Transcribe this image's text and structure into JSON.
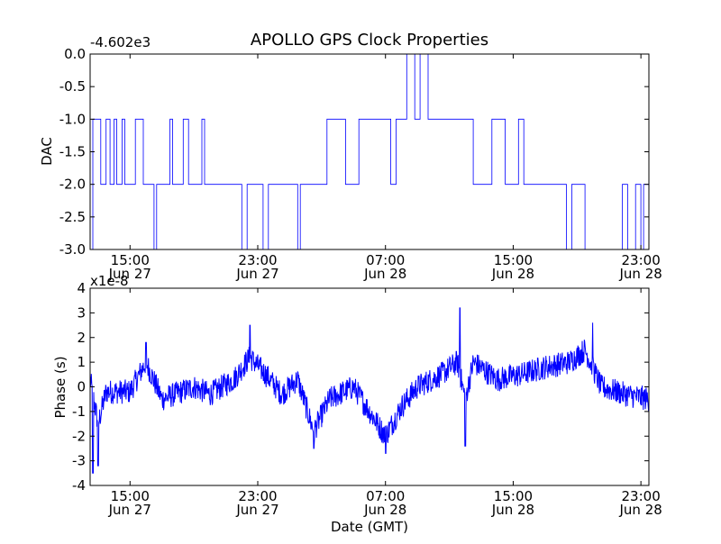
{
  "figure": {
    "title": "APOLLO GPS Clock Properties",
    "background": "#ffffff",
    "line_color": "#0000ff"
  },
  "chart_data": [
    {
      "type": "line",
      "title": "APOLLO GPS Clock Properties",
      "xlabel": "",
      "ylabel": "DAC",
      "offset_label": "-4.602e3",
      "ylim": [
        -3.0,
        0.0
      ],
      "yticks": [
        "0.0",
        "-0.5",
        "-1.0",
        "-1.5",
        "-2.0",
        "-2.5",
        "-3.0"
      ],
      "yticks_values": [
        0.0,
        -0.5,
        -1.0,
        -1.5,
        -2.0,
        -2.5,
        -3.0
      ],
      "xticks": [
        {
          "time": "15:00",
          "date": "Jun 27"
        },
        {
          "time": "23:00",
          "date": "Jun 27"
        },
        {
          "time": "07:00",
          "date": "Jun 28"
        },
        {
          "time": "15:00",
          "date": "Jun 28"
        },
        {
          "time": "23:00",
          "date": "Jun 28"
        }
      ],
      "xlim": [
        "Jun 27 12:30",
        "Jun 28 23:30"
      ],
      "color": "#0000ff",
      "series": [
        {
          "segments": [
            [
              "Jun 27 12:30",
              -3.0
            ],
            [
              "Jun 27 12:40",
              -1.0
            ],
            [
              "Jun 27 13:10",
              -2.0
            ],
            [
              "Jun 27 13:30",
              -1.0
            ],
            [
              "Jun 27 13:45",
              -2.0
            ],
            [
              "Jun 27 14:00",
              -1.0
            ],
            [
              "Jun 27 14:10",
              -2.0
            ],
            [
              "Jun 27 14:30",
              -1.0
            ],
            [
              "Jun 27 14:40",
              -2.0
            ],
            [
              "Jun 27 15:20",
              -1.0
            ],
            [
              "Jun 27 15:50",
              -2.0
            ],
            [
              "Jun 27 16:30",
              -3.0
            ],
            [
              "Jun 27 16:40",
              -2.0
            ],
            [
              "Jun 27 17:30",
              -1.0
            ],
            [
              "Jun 27 17:40",
              -2.0
            ],
            [
              "Jun 27 18:20",
              -1.0
            ],
            [
              "Jun 27 18:40",
              -2.0
            ],
            [
              "Jun 27 19:30",
              -1.0
            ],
            [
              "Jun 27 19:40",
              -2.0
            ],
            [
              "Jun 27 22:00",
              -3.0
            ],
            [
              "Jun 27 22:20",
              -2.0
            ],
            [
              "Jun 27 23:20",
              -3.0
            ],
            [
              "Jun 27 23:40",
              -2.0
            ],
            [
              "Jun 28 01:30",
              -3.0
            ],
            [
              "Jun 28 01:40",
              -2.0
            ],
            [
              "Jun 28 03:20",
              -1.0
            ],
            [
              "Jun 28 04:30",
              -2.0
            ],
            [
              "Jun 28 05:20",
              -1.0
            ],
            [
              "Jun 28 07:20",
              -2.0
            ],
            [
              "Jun 28 07:40",
              -1.0
            ],
            [
              "Jun 28 08:20",
              0.0
            ],
            [
              "Jun 28 08:50",
              -1.0
            ],
            [
              "Jun 28 09:10",
              0.0
            ],
            [
              "Jun 28 09:40",
              -1.0
            ],
            [
              "Jun 28 12:30",
              -2.0
            ],
            [
              "Jun 28 13:40",
              -1.0
            ],
            [
              "Jun 28 14:30",
              -2.0
            ],
            [
              "Jun 28 15:20",
              -1.0
            ],
            [
              "Jun 28 15:40",
              -2.0
            ],
            [
              "Jun 28 18:20",
              -3.0
            ],
            [
              "Jun 28 18:40",
              -2.0
            ],
            [
              "Jun 28 19:30",
              -3.0
            ],
            [
              "Jun 28 21:50",
              -2.0
            ],
            [
              "Jun 28 22:10",
              -3.0
            ],
            [
              "Jun 28 22:40",
              -2.0
            ],
            [
              "Jun 28 23:00",
              -3.0
            ],
            [
              "Jun 28 23:10",
              -2.0
            ],
            [
              "Jun 28 23:30",
              -2.0
            ]
          ]
        }
      ]
    },
    {
      "type": "line",
      "title": "",
      "xlabel": "Date (GMT)",
      "ylabel": "Phase (s)",
      "offset_label": "x1e-8",
      "ylim": [
        -4,
        4
      ],
      "yticks": [
        "4",
        "3",
        "2",
        "1",
        "0",
        "-1",
        "-2",
        "-3",
        "-4"
      ],
      "yticks_values": [
        4,
        3,
        2,
        1,
        0,
        -1,
        -2,
        -3,
        -4
      ],
      "xticks": [
        {
          "time": "15:00",
          "date": "Jun 27"
        },
        {
          "time": "23:00",
          "date": "Jun 27"
        },
        {
          "time": "07:00",
          "date": "Jun 28"
        },
        {
          "time": "15:00",
          "date": "Jun 28"
        },
        {
          "time": "23:00",
          "date": "Jun 28"
        }
      ],
      "xlim": [
        "Jun 27 12:30",
        "Jun 28 23:30"
      ],
      "color": "#0000ff",
      "series": [
        {
          "trend": [
            [
              "Jun 27 12:30",
              0.3
            ],
            [
              "Jun 27 13:00",
              -1.5
            ],
            [
              "Jun 27 13:30",
              -0.2
            ],
            [
              "Jun 27 15:00",
              -0.2
            ],
            [
              "Jun 27 16:00",
              1.0
            ],
            [
              "Jun 27 17:00",
              -0.5
            ],
            [
              "Jun 27 19:00",
              0.0
            ],
            [
              "Jun 27 20:00",
              -0.3
            ],
            [
              "Jun 27 21:30",
              0.3
            ],
            [
              "Jun 27 22:30",
              1.2
            ],
            [
              "Jun 27 23:30",
              0.5
            ],
            [
              "Jun 28 00:30",
              -0.3
            ],
            [
              "Jun 28 01:30",
              0.3
            ],
            [
              "Jun 28 02:30",
              -1.8
            ],
            [
              "Jun 28 03:30",
              -0.5
            ],
            [
              "Jun 28 05:00",
              0.0
            ],
            [
              "Jun 28 06:00",
              -1.0
            ],
            [
              "Jun 28 07:00",
              -2.0
            ],
            [
              "Jun 28 08:00",
              -0.8
            ],
            [
              "Jun 28 09:00",
              0.0
            ],
            [
              "Jun 28 10:30",
              0.5
            ],
            [
              "Jun 28 11:30",
              1.0
            ],
            [
              "Jun 28 12:00",
              -0.5
            ],
            [
              "Jun 28 12:30",
              1.0
            ],
            [
              "Jun 28 14:00",
              0.3
            ],
            [
              "Jun 28 15:30",
              0.5
            ],
            [
              "Jun 28 17:00",
              0.8
            ],
            [
              "Jun 28 18:30",
              1.0
            ],
            [
              "Jun 28 19:30",
              1.5
            ],
            [
              "Jun 28 20:30",
              0.0
            ],
            [
              "Jun 28 22:00",
              -0.3
            ],
            [
              "Jun 28 23:30",
              -0.5
            ]
          ],
          "noise_amplitude": 0.5,
          "extremes": [
            [
              "Jun 27 12:40",
              -3.5
            ],
            [
              "Jun 27 13:00",
              -3.2
            ],
            [
              "Jun 27 16:00",
              1.8
            ],
            [
              "Jun 27 22:30",
              2.5
            ],
            [
              "Jun 28 02:30",
              -2.5
            ],
            [
              "Jun 28 07:00",
              -2.7
            ],
            [
              "Jun 28 11:40",
              3.2
            ],
            [
              "Jun 28 12:00",
              -2.4
            ],
            [
              "Jun 28 20:00",
              2.6
            ]
          ]
        }
      ]
    }
  ]
}
